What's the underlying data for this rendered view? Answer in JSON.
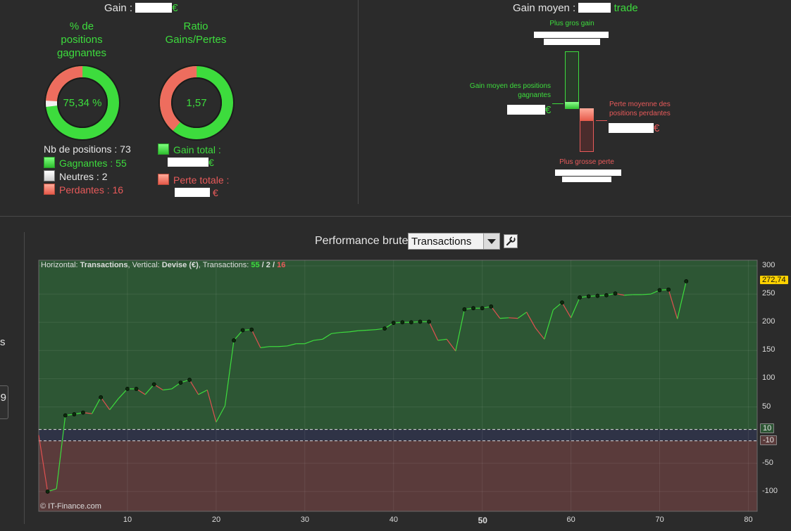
{
  "top_left": {
    "gain_label": "Gain :",
    "gain_currency": "€",
    "pct_title": "% de\npositions\ngagnantes",
    "ratio_title": "Ratio\nGains/Pertes",
    "pct_value": "75,34 %",
    "pct_fraction": 0.7534,
    "neutral_fraction": 0.0274,
    "ratio_value": "1,57",
    "ratio_fraction": 0.611,
    "nb_positions": "Nb de positions : 73",
    "gagnantes": "Gagnantes : 55",
    "neutres": "Neutres : 2",
    "perdantes": "Perdantes : 16",
    "gain_total_label": "Gain total :",
    "perte_totale_label": "Perte totale :",
    "euro": "€"
  },
  "top_right": {
    "gain_moyen_label": "Gain moyen :",
    "trade_suffix": "trade",
    "plus_gros_gain": "Plus gros gain",
    "gain_moyen_positions": "Gain moyen des positions\ngagnantes",
    "perte_moyenne_positions": "Perte moyenne des\npositions perdantes",
    "plus_grosse_perte": "Plus grosse perte",
    "euro": "€"
  },
  "chart_header": {
    "title": "Performance brute",
    "dropdown_value": "Transactions",
    "info_horizontal_label": "Horizontal: ",
    "info_horizontal_value": "Transactions",
    "info_vertical_label": ", Vertical: ",
    "info_vertical_value": "Devise (€)",
    "info_transactions_label": ", Transactions: ",
    "info_win": "55",
    "info_sep1": " / ",
    "info_neutral": "2",
    "info_sep2": " / ",
    "info_loss": "16",
    "watermark": "© IT-Finance.com",
    "last_value_tag": "272,74",
    "upper_band_tag": "10",
    "lower_band_tag": "-10",
    "left_fragment_s": "s",
    "left_fragment_9": "9"
  },
  "chart_data": {
    "type": "line",
    "xlim": [
      0,
      81
    ],
    "ylim": [
      -135,
      310
    ],
    "yticks": [
      300,
      250,
      200,
      150,
      100,
      50,
      -50,
      -100
    ],
    "xticks": [
      10,
      20,
      30,
      40,
      50,
      60,
      70,
      80
    ],
    "band": [
      -10,
      10
    ],
    "colors": {
      "up": "#3ddc3d",
      "down": "#e05050",
      "pos_area": "#2d5634",
      "neg_area": "#5a3b3b"
    },
    "x": [
      0,
      1,
      2,
      3,
      4,
      5,
      6,
      7,
      8,
      9,
      10,
      11,
      12,
      13,
      14,
      15,
      16,
      17,
      18,
      19,
      20,
      21,
      22,
      23,
      24,
      25,
      26,
      27,
      28,
      29,
      30,
      31,
      32,
      33,
      34,
      35,
      36,
      37,
      38,
      39,
      40,
      41,
      42,
      43,
      44,
      45,
      46,
      47,
      48,
      49,
      50,
      51,
      52,
      53,
      54,
      55,
      56,
      57,
      58,
      59,
      60,
      61,
      62,
      63,
      64,
      65,
      66,
      67,
      68,
      69,
      70,
      71,
      72,
      73
    ],
    "y": [
      0,
      -100,
      -95,
      35,
      37,
      40,
      38,
      67,
      45,
      65,
      82,
      82,
      72,
      90,
      80,
      82,
      93,
      98,
      72,
      80,
      23,
      52,
      168,
      186,
      187,
      155,
      157,
      157,
      158,
      162,
      162,
      168,
      170,
      180,
      182,
      183,
      185,
      186,
      187,
      189,
      199,
      200,
      200,
      201,
      201,
      168,
      170,
      149,
      223,
      225,
      225,
      228,
      207,
      208,
      207,
      218,
      190,
      170,
      222,
      235,
      208,
      244,
      246,
      247,
      248,
      251,
      248,
      249,
      249,
      250,
      257,
      258,
      206,
      272.74
    ],
    "markers_x": [
      1,
      3,
      4,
      5,
      7,
      10,
      11,
      13,
      16,
      17,
      22,
      23,
      24,
      39,
      40,
      41,
      42,
      43,
      44,
      48,
      49,
      50,
      51,
      59,
      61,
      62,
      63,
      64,
      65,
      70,
      71,
      73
    ]
  }
}
